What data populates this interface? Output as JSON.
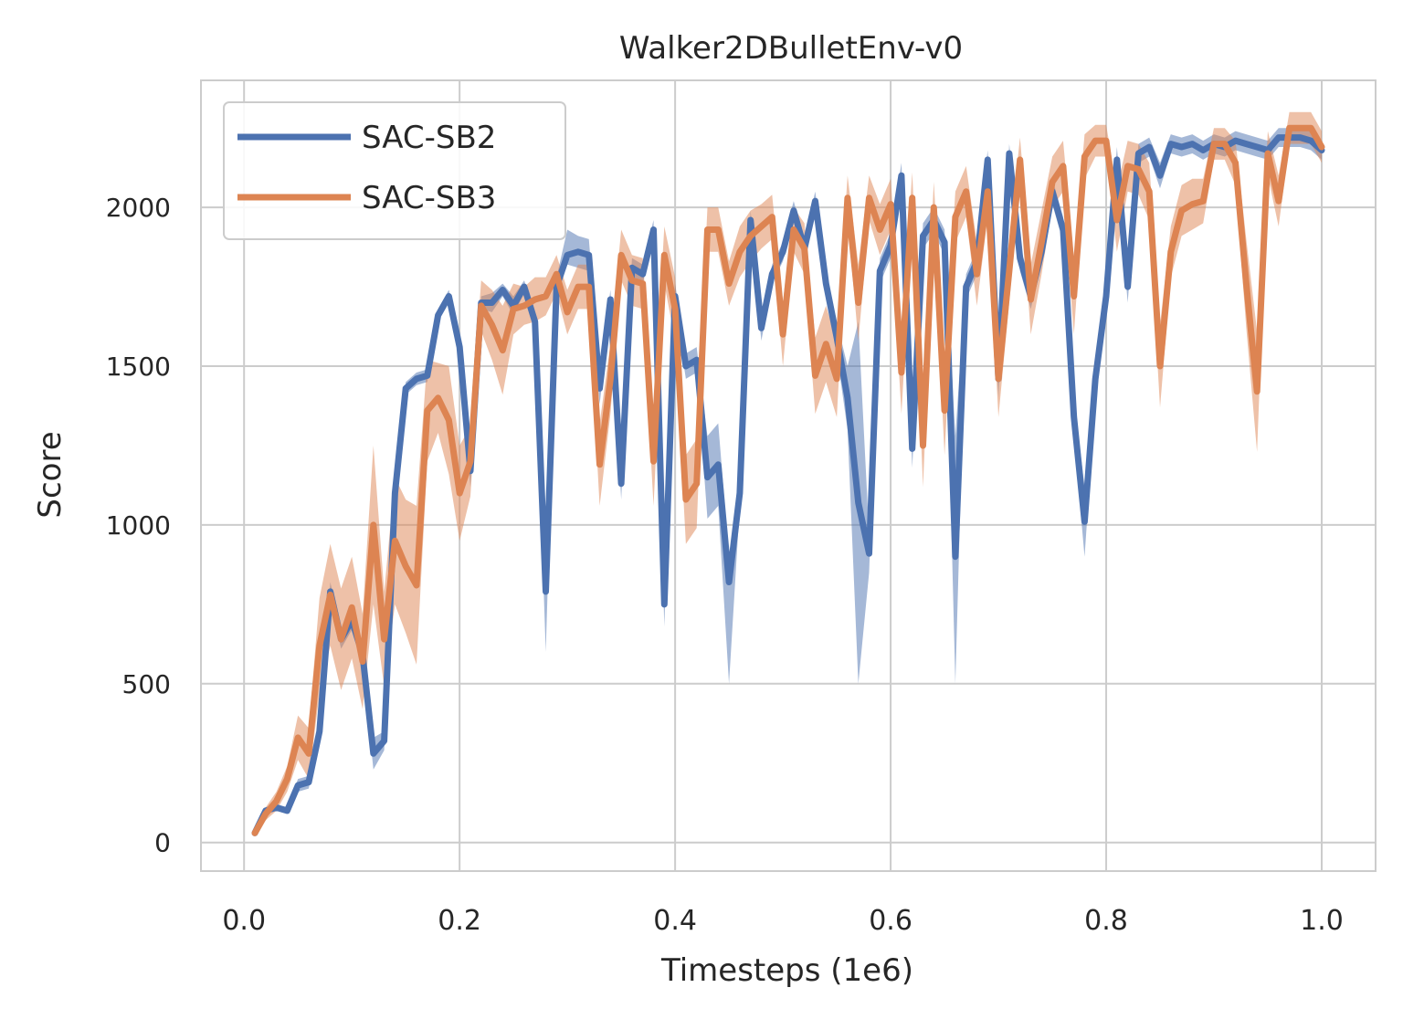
{
  "chart_data": {
    "type": "line",
    "title": "Walker2DBulletEnv-v0",
    "xlabel": "Timesteps (1e6)",
    "ylabel": "Score",
    "xlim": [
      -0.04,
      1.05
    ],
    "ylim": [
      -90,
      2400
    ],
    "xticks": [
      0.0,
      0.2,
      0.4,
      0.6,
      0.8,
      1.0
    ],
    "xtick_labels": [
      "0.0",
      "0.2",
      "0.4",
      "0.6",
      "0.8",
      "1.0"
    ],
    "yticks": [
      0,
      500,
      1000,
      1500,
      2000
    ],
    "ytick_labels": [
      "0",
      "500",
      "1000",
      "1500",
      "2000"
    ],
    "grid": true,
    "legend_position": "top-left",
    "x": [
      0.01,
      0.02,
      0.03,
      0.04,
      0.05,
      0.06,
      0.07,
      0.08,
      0.09,
      0.1,
      0.11,
      0.12,
      0.13,
      0.14,
      0.15,
      0.16,
      0.17,
      0.18,
      0.19,
      0.2,
      0.21,
      0.22,
      0.23,
      0.24,
      0.25,
      0.26,
      0.27,
      0.28,
      0.29,
      0.3,
      0.31,
      0.32,
      0.33,
      0.34,
      0.35,
      0.36,
      0.37,
      0.38,
      0.39,
      0.4,
      0.41,
      0.42,
      0.43,
      0.44,
      0.45,
      0.46,
      0.47,
      0.48,
      0.49,
      0.5,
      0.51,
      0.52,
      0.53,
      0.54,
      0.55,
      0.56,
      0.57,
      0.58,
      0.59,
      0.6,
      0.61,
      0.62,
      0.63,
      0.64,
      0.65,
      0.66,
      0.67,
      0.68,
      0.69,
      0.7,
      0.71,
      0.72,
      0.73,
      0.74,
      0.75,
      0.76,
      0.77,
      0.78,
      0.79,
      0.8,
      0.81,
      0.82,
      0.83,
      0.84,
      0.85,
      0.86,
      0.87,
      0.88,
      0.89,
      0.9,
      0.91,
      0.92,
      0.93,
      0.94,
      0.95,
      0.96,
      0.97,
      0.98,
      0.99,
      1.0
    ],
    "series": [
      {
        "name": "SAC-SB2",
        "color": "#4c72b0",
        "values": [
          30,
          100,
          110,
          100,
          180,
          190,
          350,
          790,
          640,
          700,
          590,
          280,
          320,
          1100,
          1430,
          1460,
          1470,
          1660,
          1720,
          1560,
          1170,
          1700,
          1700,
          1740,
          1690,
          1750,
          1640,
          790,
          1750,
          1850,
          1860,
          1850,
          1430,
          1710,
          1130,
          1810,
          1790,
          1930,
          750,
          1720,
          1500,
          1520,
          1150,
          1190,
          820,
          1100,
          1960,
          1620,
          1790,
          1860,
          1990,
          1870,
          2020,
          1760,
          1590,
          1400,
          1070,
          910,
          1800,
          1880,
          2100,
          1240,
          1910,
          1960,
          1890,
          900,
          1750,
          1830,
          2150,
          1460,
          2170,
          1840,
          1720,
          1860,
          2050,
          1930,
          1340,
          1010,
          1460,
          1720,
          2150,
          1750,
          2170,
          2190,
          2100,
          2200,
          2190,
          2200,
          2180,
          2200,
          2190,
          2210,
          2200,
          2190,
          2180,
          2220,
          2220,
          2220,
          2210,
          2180
        ],
        "lower": [
          25,
          90,
          100,
          90,
          160,
          170,
          330,
          760,
          610,
          670,
          560,
          230,
          290,
          1050,
          1410,
          1440,
          1450,
          1640,
          1700,
          1520,
          1120,
          1680,
          1670,
          1720,
          1660,
          1730,
          1610,
          600,
          1720,
          1820,
          1810,
          1800,
          1380,
          1680,
          1080,
          1780,
          1760,
          1900,
          680,
          1680,
          1460,
          1480,
          1020,
          1060,
          500,
          1060,
          1930,
          1580,
          1760,
          1830,
          1960,
          1840,
          1990,
          1720,
          1540,
          1300,
          500,
          850,
          1760,
          1840,
          2060,
          1180,
          1870,
          1920,
          1850,
          500,
          1710,
          1790,
          2120,
          1400,
          2140,
          1800,
          1680,
          1820,
          2010,
          1890,
          1280,
          900,
          1400,
          1680,
          2110,
          1700,
          2140,
          2160,
          2060,
          2170,
          2160,
          2170,
          2150,
          2170,
          2160,
          2180,
          2170,
          2160,
          2150,
          2190,
          2190,
          2190,
          2180,
          2150
        ],
        "upper": [
          35,
          110,
          120,
          110,
          200,
          210,
          370,
          820,
          670,
          730,
          620,
          330,
          350,
          1150,
          1450,
          1480,
          1490,
          1680,
          1740,
          1600,
          1220,
          1720,
          1730,
          1760,
          1720,
          1770,
          1670,
          900,
          1780,
          1930,
          1910,
          1900,
          1480,
          1740,
          1180,
          1840,
          1820,
          1960,
          820,
          1760,
          1540,
          1560,
          1280,
          1320,
          900,
          1140,
          1990,
          1660,
          1820,
          1890,
          2020,
          1900,
          2050,
          1800,
          1640,
          1500,
          1640,
          970,
          1840,
          1920,
          2140,
          1300,
          1950,
          2000,
          1930,
          1280,
          1790,
          1870,
          2180,
          1520,
          2200,
          1880,
          1760,
          1900,
          2090,
          1970,
          1400,
          1120,
          1520,
          1760,
          2190,
          1800,
          2200,
          2220,
          2140,
          2230,
          2220,
          2230,
          2210,
          2230,
          2220,
          2240,
          2230,
          2220,
          2210,
          2250,
          2250,
          2250,
          2240,
          2210
        ]
      },
      {
        "name": "SAC-SB3",
        "color": "#dd8452",
        "values": [
          30,
          90,
          130,
          200,
          330,
          280,
          620,
          780,
          640,
          740,
          570,
          1000,
          640,
          950,
          870,
          810,
          1360,
          1400,
          1330,
          1100,
          1200,
          1690,
          1630,
          1550,
          1680,
          1690,
          1710,
          1720,
          1790,
          1670,
          1750,
          1750,
          1190,
          1460,
          1850,
          1770,
          1760,
          1200,
          1850,
          1680,
          1080,
          1130,
          1930,
          1930,
          1760,
          1860,
          1910,
          1940,
          1970,
          1600,
          1930,
          1870,
          1470,
          1570,
          1460,
          2030,
          1700,
          2030,
          1930,
          2010,
          1480,
          2030,
          1250,
          2000,
          1360,
          1970,
          2050,
          1790,
          2050,
          1460,
          1800,
          2150,
          1710,
          1890,
          2080,
          2130,
          1720,
          2160,
          2210,
          2210,
          1960,
          2130,
          2120,
          2050,
          1500,
          1860,
          1990,
          2010,
          2020,
          2200,
          2200,
          2140,
          1760,
          1420,
          2170,
          2020,
          2250,
          2250,
          2250,
          2190
        ],
        "lower": [
          20,
          70,
          100,
          160,
          260,
          200,
          470,
          620,
          480,
          580,
          420,
          750,
          490,
          750,
          660,
          560,
          1200,
          1290,
          1160,
          950,
          1090,
          1610,
          1520,
          1410,
          1600,
          1630,
          1640,
          1660,
          1730,
          1600,
          1680,
          1680,
          1060,
          1350,
          1770,
          1690,
          1680,
          1060,
          1760,
          1580,
          940,
          990,
          1860,
          1860,
          1690,
          1780,
          1830,
          1870,
          1900,
          1500,
          1860,
          1790,
          1350,
          1450,
          1340,
          1960,
          1580,
          1960,
          1850,
          1930,
          1350,
          1950,
          1120,
          1920,
          1220,
          1890,
          1970,
          1690,
          1970,
          1340,
          1700,
          2080,
          1600,
          1790,
          2000,
          2050,
          1600,
          2090,
          2160,
          2160,
          1860,
          2050,
          2040,
          1960,
          1370,
          1780,
          1910,
          1930,
          1950,
          2150,
          2150,
          2070,
          1620,
          1230,
          2100,
          1940,
          2200,
          2200,
          2200,
          2140
        ],
        "upper": [
          40,
          110,
          160,
          240,
          400,
          360,
          770,
          940,
          800,
          900,
          720,
          1250,
          790,
          1150,
          1080,
          1060,
          1520,
          1510,
          1500,
          1250,
          1310,
          1770,
          1740,
          1690,
          1760,
          1750,
          1780,
          1780,
          1850,
          1740,
          1820,
          1820,
          1320,
          1570,
          1930,
          1850,
          1840,
          1340,
          1940,
          1780,
          1220,
          1270,
          2000,
          2000,
          1830,
          1940,
          1990,
          2010,
          2040,
          1700,
          2000,
          1950,
          1590,
          1690,
          1580,
          2100,
          1820,
          2100,
          2010,
          2090,
          1610,
          2110,
          1380,
          2080,
          1500,
          2050,
          2130,
          1890,
          2130,
          1580,
          1900,
          2220,
          1820,
          1990,
          2160,
          2210,
          1840,
          2230,
          2260,
          2260,
          2060,
          2210,
          2200,
          2140,
          1630,
          1940,
          2070,
          2090,
          2090,
          2250,
          2250,
          2210,
          1900,
          1610,
          2240,
          2100,
          2300,
          2300,
          2300,
          2240
        ]
      }
    ]
  }
}
